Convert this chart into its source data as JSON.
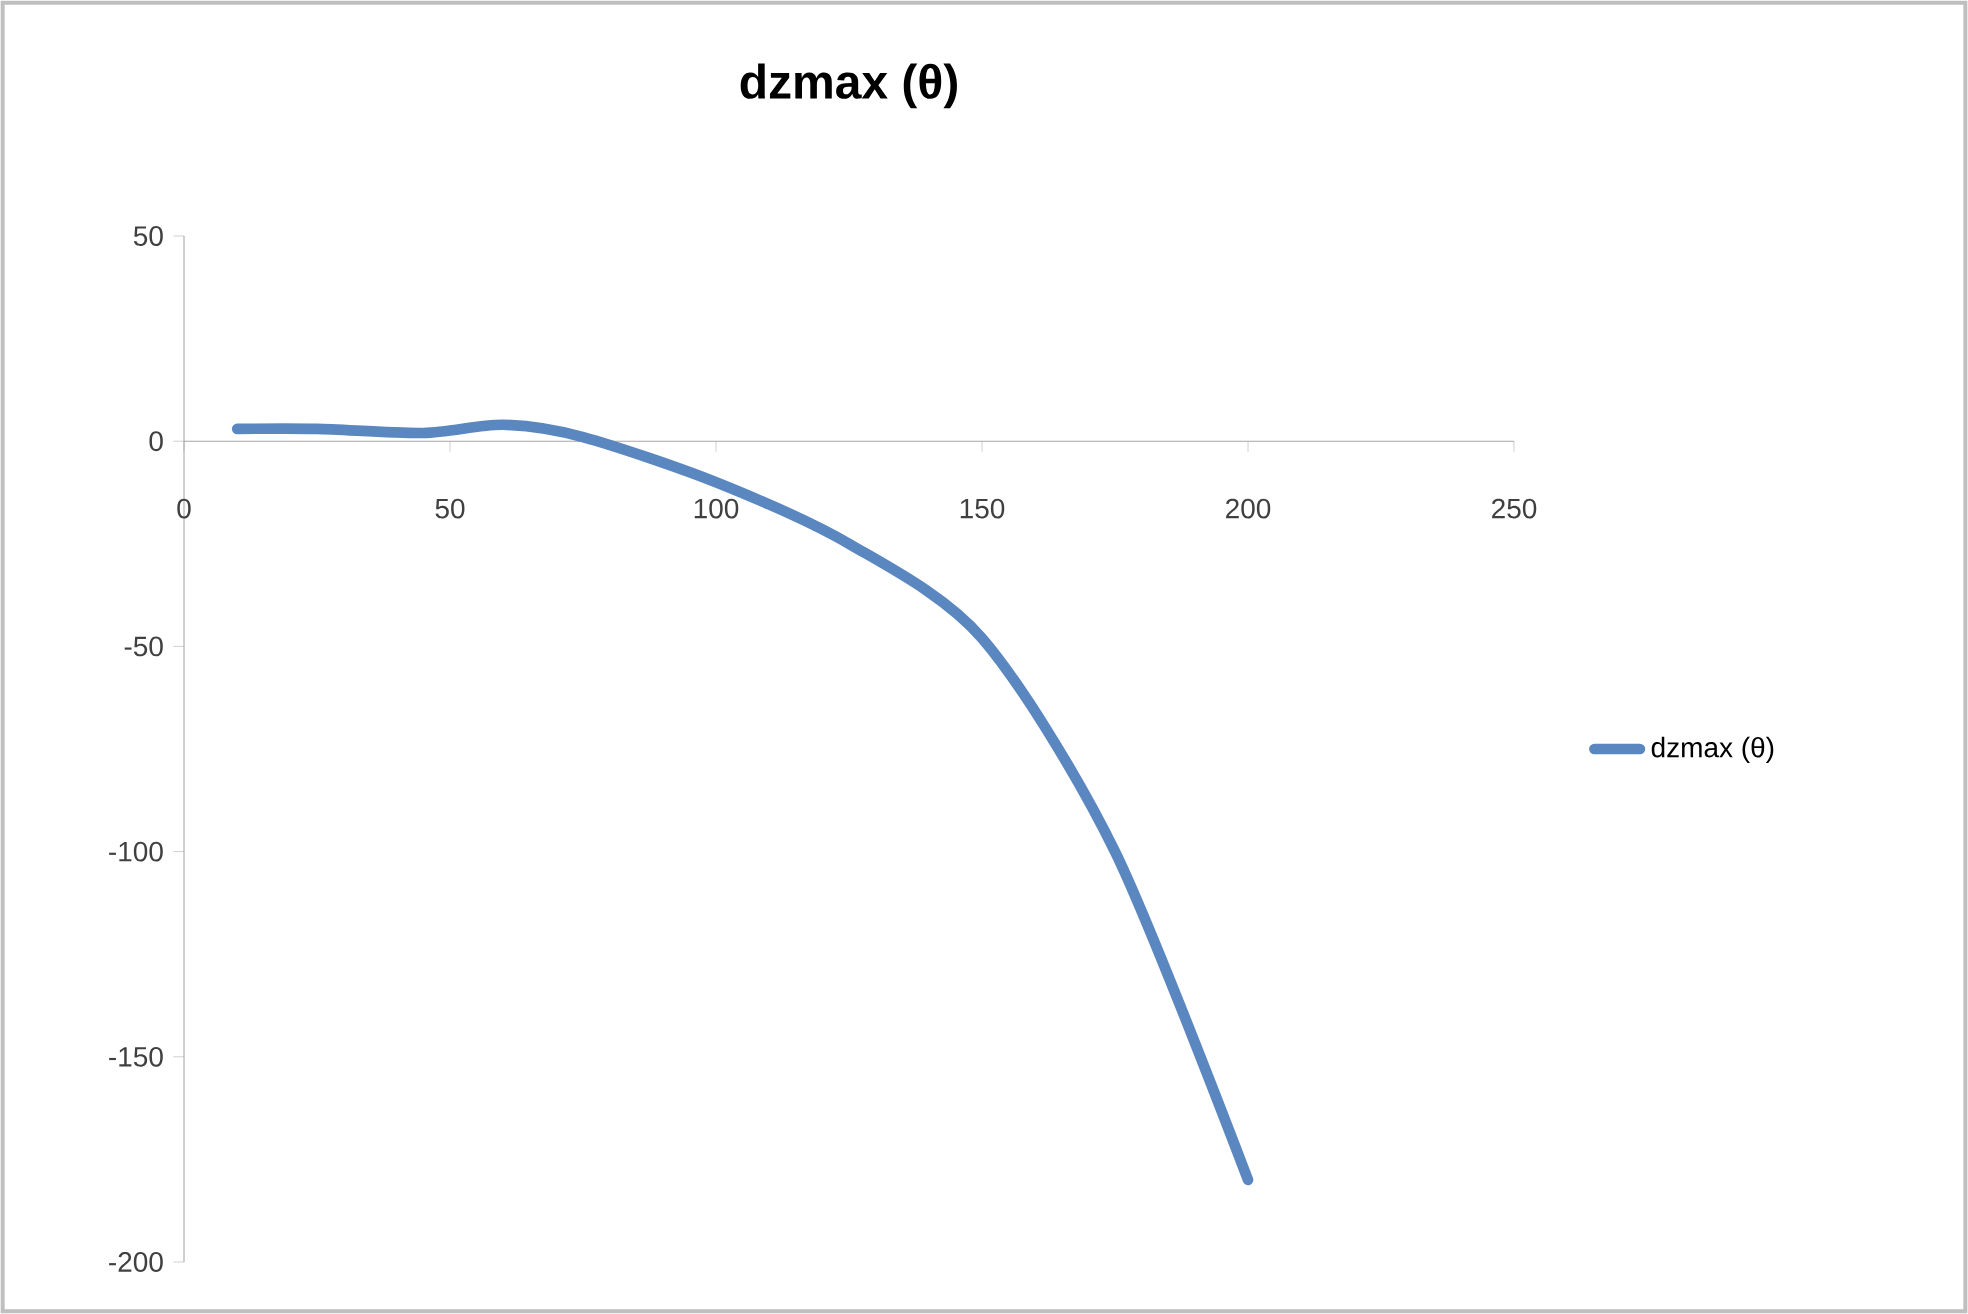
{
  "chart_data": {
    "type": "line",
    "title": "dzmax (θ)",
    "x": [
      10,
      25,
      45,
      60,
      75,
      100,
      125,
      150,
      175,
      200
    ],
    "series": [
      {
        "name": "dzmax (θ)",
        "color": "#5b87c0",
        "values": [
          3,
          3,
          2,
          4,
          1,
          -10,
          -25,
          -48,
          -100,
          -180
        ]
      }
    ],
    "xlim": [
      0,
      250
    ],
    "xticks": [
      0,
      50,
      100,
      150,
      200,
      250
    ],
    "ylim": [
      -200,
      50
    ],
    "yticks": [
      -200,
      -150,
      -100,
      -50,
      0,
      50
    ],
    "grid": false,
    "legend": "right",
    "marker": "none",
    "line_style": "solid"
  }
}
